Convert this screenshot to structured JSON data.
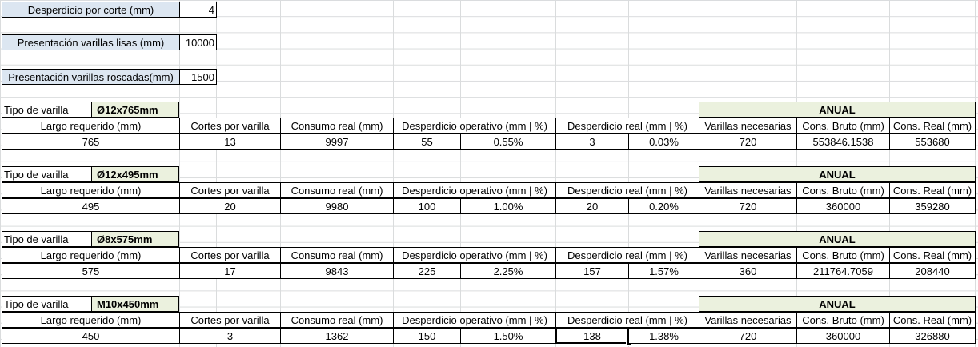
{
  "params": {
    "desperdicio_label": "Desperdicio por corte (mm)",
    "desperdicio_value": "4",
    "lisas_label": "Presentación varillas lisas (mm)",
    "lisas_value": "10000",
    "roscadas_label": "Presentación varillas roscadas(mm)",
    "roscadas_value": "1500"
  },
  "labels": {
    "tipo": "Tipo de varilla",
    "anual": "ANUAL",
    "largo": "Largo requerido (mm)",
    "cortes": "Cortes por varilla",
    "consumo": "Consumo real (mm)",
    "desp_op": "Desperdicio operativo (mm | %)",
    "desp_real": "Desperdicio real (mm | %)",
    "varillas": "Varillas necesarias",
    "bruto": "Cons. Bruto (mm)",
    "creal": "Cons. Real (mm)"
  },
  "blocks": [
    {
      "tipo": "Ø12x765mm",
      "largo": "765",
      "cortes": "13",
      "consumo": "9997",
      "op_mm": "55",
      "op_pct": "0.55%",
      "real_mm": "3",
      "real_pct": "0.03%",
      "varillas": "720",
      "bruto": "553846.1538",
      "creal": "553680"
    },
    {
      "tipo": "Ø12x495mm",
      "largo": "495",
      "cortes": "20",
      "consumo": "9980",
      "op_mm": "100",
      "op_pct": "1.00%",
      "real_mm": "20",
      "real_pct": "0.20%",
      "varillas": "720",
      "bruto": "360000",
      "creal": "359280"
    },
    {
      "tipo": "Ø8x575mm",
      "largo": "575",
      "cortes": "17",
      "consumo": "9843",
      "op_mm": "225",
      "op_pct": "2.25%",
      "real_mm": "157",
      "real_pct": "1.57%",
      "varillas": "360",
      "bruto": "211764.7059",
      "creal": "208440"
    },
    {
      "tipo": "M10x450mm",
      "largo": "450",
      "cortes": "3",
      "consumo": "1362",
      "op_mm": "150",
      "op_pct": "1.50%",
      "real_mm": "138",
      "real_pct": "1.38%",
      "varillas": "720",
      "bruto": "360000",
      "creal": "326880"
    }
  ]
}
